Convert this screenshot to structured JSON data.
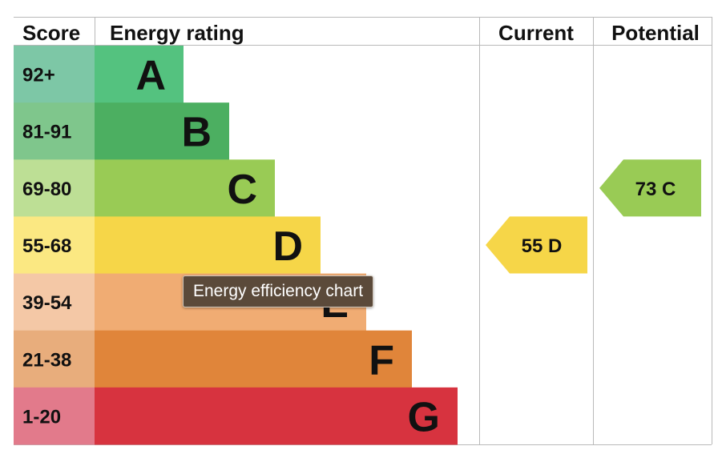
{
  "chart_data": {
    "type": "bar",
    "headers": {
      "score": "Score",
      "rating": "Energy rating",
      "current": "Current",
      "potential": "Potential"
    },
    "bands": [
      {
        "range": "92+",
        "letter": "A",
        "band_color": "#54c27f",
        "score_color": "#7dc7a6"
      },
      {
        "range": "81-91",
        "letter": "B",
        "band_color": "#4caf61",
        "score_color": "#7fc68c"
      },
      {
        "range": "69-80",
        "letter": "C",
        "band_color": "#99cb55",
        "score_color": "#bddf95"
      },
      {
        "range": "55-68",
        "letter": "D",
        "band_color": "#f6d648",
        "score_color": "#fbe882"
      },
      {
        "range": "39-54",
        "letter": "E",
        "band_color": "#f0ac73",
        "score_color": "#f4c8a6"
      },
      {
        "range": "21-38",
        "letter": "F",
        "band_color": "#e0853a",
        "score_color": "#e8ad7c"
      },
      {
        "range": "1-20",
        "letter": "G",
        "band_color": "#d7333f",
        "score_color": "#e27a8b"
      }
    ],
    "current": {
      "value": 55,
      "letter": "D",
      "label": "55  D",
      "color": "#f6d648"
    },
    "potential": {
      "value": 73,
      "letter": "C",
      "label": "73  C",
      "color": "#99cb55"
    }
  },
  "tooltip": {
    "text": "Energy efficiency chart"
  }
}
